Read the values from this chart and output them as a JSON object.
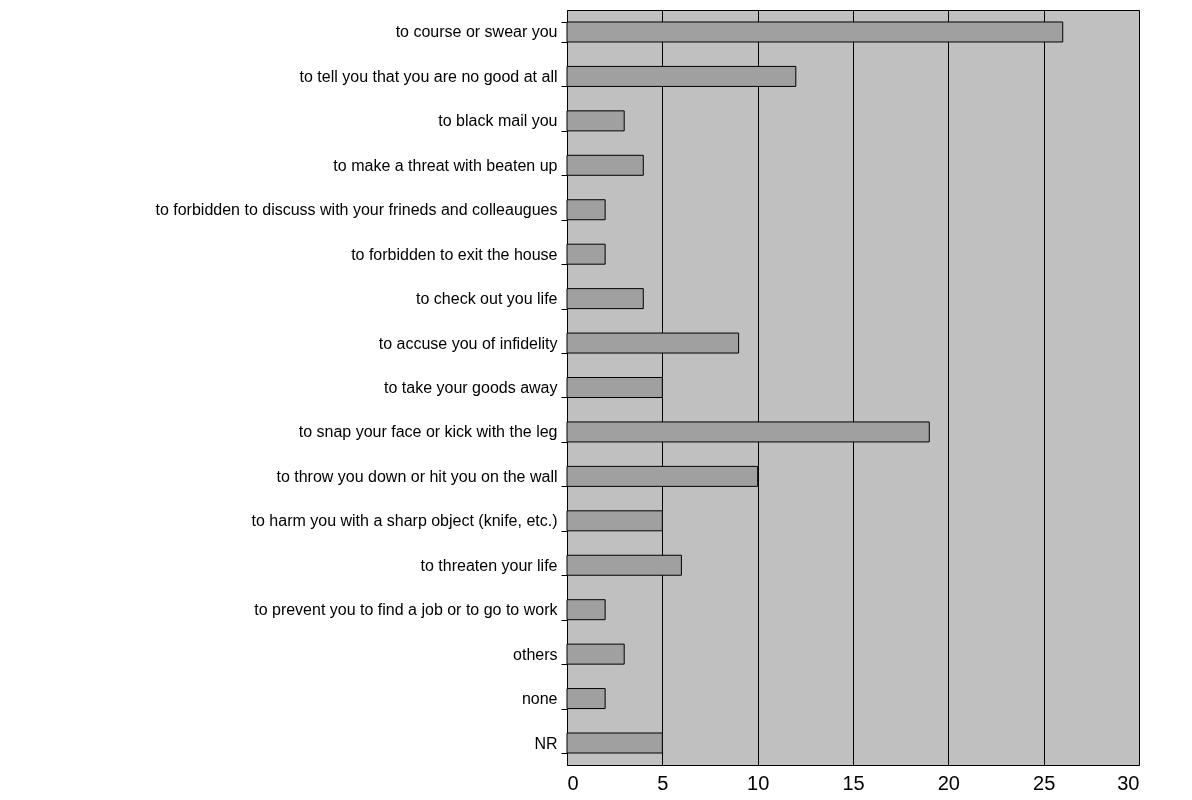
{
  "chart_data": {
    "type": "bar",
    "orientation": "horizontal",
    "categories": [
      "to course or swear you",
      "to tell you that you are no good at all",
      "to black mail you",
      "to make a threat with beaten up",
      "to forbidden to discuss with your frineds and colleaugues",
      "to forbidden to exit the house",
      "to check out you life ",
      "to accuse you of infidelity",
      "to take your goods away",
      "to snap your face or kick with the leg",
      "to throw you down or hit you on the wall",
      "to harm you with a sharp object (knife, etc.)",
      "to threaten your life",
      "to prevent you to find a job or to go to work",
      "others",
      "none",
      "NR"
    ],
    "values": [
      26,
      12,
      3,
      4,
      2,
      2,
      4,
      9,
      5,
      19,
      10,
      5,
      6,
      2,
      3,
      2,
      5
    ],
    "color": "#a0a0a0",
    "xlim": [
      0,
      30
    ],
    "xticks": [
      0,
      5,
      10,
      15,
      20,
      25,
      30
    ],
    "grid": "x"
  }
}
